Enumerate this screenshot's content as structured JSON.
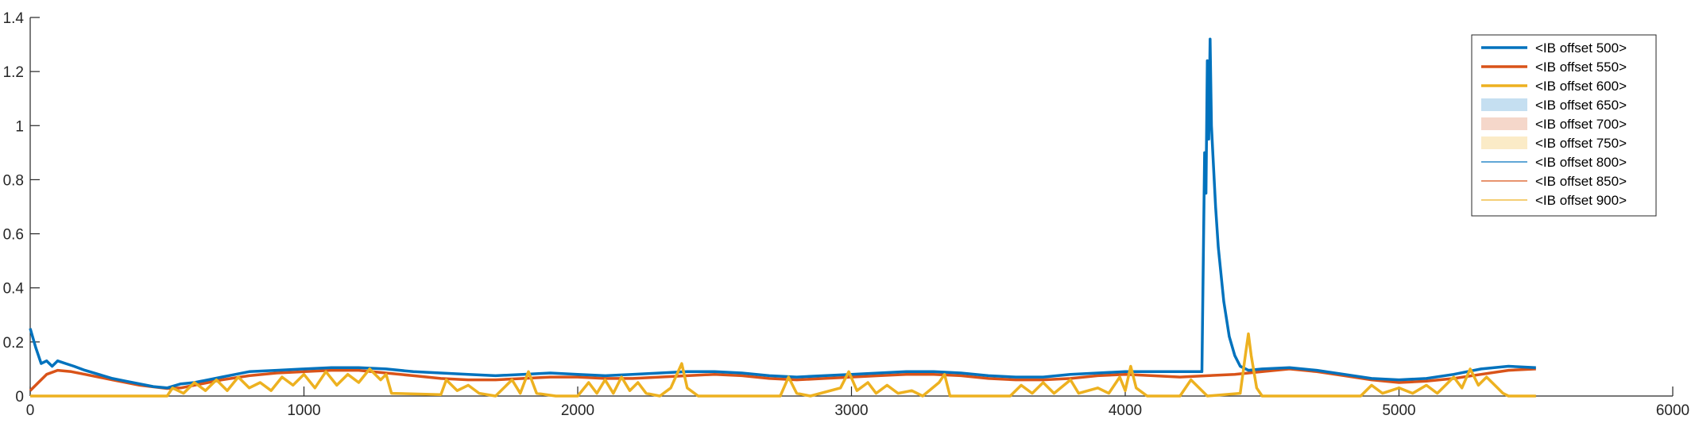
{
  "chart_data": {
    "type": "line",
    "title": "",
    "xlabel": "",
    "ylabel": "",
    "xlim": [
      0,
      6000
    ],
    "ylim": [
      0,
      1.4
    ],
    "xticks": [
      "0",
      "1000",
      "2000",
      "3000",
      "4000",
      "5000",
      "6000"
    ],
    "yticks": [
      "0",
      "0.2",
      "0.4",
      "0.6",
      "0.8",
      "1",
      "1.2",
      "1.4"
    ],
    "grid": false,
    "legend_position": "top-right",
    "series": [
      {
        "name": "<IB offset 500>",
        "style": "thick-line",
        "color": "#0072BD",
        "points": [
          [
            0,
            0.25
          ],
          [
            20,
            0.18
          ],
          [
            40,
            0.12
          ],
          [
            60,
            0.13
          ],
          [
            80,
            0.11
          ],
          [
            100,
            0.13
          ],
          [
            130,
            0.12
          ],
          [
            160,
            0.11
          ],
          [
            200,
            0.095
          ],
          [
            250,
            0.08
          ],
          [
            300,
            0.065
          ],
          [
            350,
            0.055
          ],
          [
            400,
            0.045
          ],
          [
            450,
            0.035
          ],
          [
            500,
            0.03
          ],
          [
            550,
            0.045
          ],
          [
            600,
            0.05
          ],
          [
            650,
            0.06
          ],
          [
            700,
            0.07
          ],
          [
            750,
            0.08
          ],
          [
            800,
            0.09
          ],
          [
            900,
            0.095
          ],
          [
            1000,
            0.1
          ],
          [
            1100,
            0.105
          ],
          [
            1200,
            0.105
          ],
          [
            1300,
            0.1
          ],
          [
            1400,
            0.09
          ],
          [
            1500,
            0.085
          ],
          [
            1600,
            0.08
          ],
          [
            1700,
            0.075
          ],
          [
            1800,
            0.08
          ],
          [
            1900,
            0.085
          ],
          [
            2000,
            0.08
          ],
          [
            2100,
            0.075
          ],
          [
            2200,
            0.08
          ],
          [
            2300,
            0.085
          ],
          [
            2400,
            0.09
          ],
          [
            2500,
            0.09
          ],
          [
            2600,
            0.085
          ],
          [
            2700,
            0.075
          ],
          [
            2800,
            0.07
          ],
          [
            2900,
            0.075
          ],
          [
            3000,
            0.08
          ],
          [
            3100,
            0.085
          ],
          [
            3200,
            0.09
          ],
          [
            3300,
            0.09
          ],
          [
            3400,
            0.085
          ],
          [
            3500,
            0.075
          ],
          [
            3600,
            0.07
          ],
          [
            3700,
            0.07
          ],
          [
            3800,
            0.08
          ],
          [
            3900,
            0.085
          ],
          [
            4000,
            0.09
          ],
          [
            4100,
            0.09
          ],
          [
            4200,
            0.09
          ],
          [
            4280,
            0.09
          ],
          [
            4290,
            0.9
          ],
          [
            4295,
            0.75
          ],
          [
            4300,
            1.24
          ],
          [
            4305,
            0.95
          ],
          [
            4310,
            1.32
          ],
          [
            4315,
            1.0
          ],
          [
            4320,
            0.9
          ],
          [
            4330,
            0.7
          ],
          [
            4340,
            0.55
          ],
          [
            4360,
            0.35
          ],
          [
            4380,
            0.22
          ],
          [
            4400,
            0.15
          ],
          [
            4420,
            0.11
          ],
          [
            4450,
            0.095
          ],
          [
            4500,
            0.1
          ],
          [
            4600,
            0.105
          ],
          [
            4700,
            0.095
          ],
          [
            4800,
            0.08
          ],
          [
            4900,
            0.065
          ],
          [
            5000,
            0.06
          ],
          [
            5100,
            0.065
          ],
          [
            5200,
            0.08
          ],
          [
            5300,
            0.1
          ],
          [
            5400,
            0.11
          ],
          [
            5500,
            0.105
          ]
        ]
      },
      {
        "name": "<IB offset 550>",
        "style": "thick-line",
        "color": "#D95319",
        "points": [
          [
            0,
            0.02
          ],
          [
            30,
            0.05
          ],
          [
            60,
            0.08
          ],
          [
            100,
            0.095
          ],
          [
            150,
            0.09
          ],
          [
            200,
            0.08
          ],
          [
            300,
            0.06
          ],
          [
            400,
            0.04
          ],
          [
            500,
            0.028
          ],
          [
            550,
            0.03
          ],
          [
            600,
            0.04
          ],
          [
            700,
            0.06
          ],
          [
            800,
            0.075
          ],
          [
            900,
            0.085
          ],
          [
            1000,
            0.09
          ],
          [
            1100,
            0.095
          ],
          [
            1200,
            0.095
          ],
          [
            1300,
            0.085
          ],
          [
            1400,
            0.075
          ],
          [
            1500,
            0.065
          ],
          [
            1600,
            0.06
          ],
          [
            1700,
            0.06
          ],
          [
            1800,
            0.065
          ],
          [
            1900,
            0.07
          ],
          [
            2000,
            0.07
          ],
          [
            2100,
            0.065
          ],
          [
            2200,
            0.065
          ],
          [
            2300,
            0.07
          ],
          [
            2400,
            0.075
          ],
          [
            2500,
            0.08
          ],
          [
            2600,
            0.075
          ],
          [
            2700,
            0.065
          ],
          [
            2800,
            0.06
          ],
          [
            2900,
            0.065
          ],
          [
            3000,
            0.07
          ],
          [
            3100,
            0.075
          ],
          [
            3200,
            0.08
          ],
          [
            3300,
            0.08
          ],
          [
            3400,
            0.075
          ],
          [
            3500,
            0.065
          ],
          [
            3600,
            0.06
          ],
          [
            3700,
            0.06
          ],
          [
            3800,
            0.065
          ],
          [
            3900,
            0.075
          ],
          [
            4000,
            0.08
          ],
          [
            4100,
            0.075
          ],
          [
            4200,
            0.07
          ],
          [
            4300,
            0.075
          ],
          [
            4400,
            0.08
          ],
          [
            4500,
            0.09
          ],
          [
            4600,
            0.1
          ],
          [
            4700,
            0.09
          ],
          [
            4800,
            0.075
          ],
          [
            4900,
            0.06
          ],
          [
            5000,
            0.05
          ],
          [
            5100,
            0.055
          ],
          [
            5200,
            0.065
          ],
          [
            5300,
            0.08
          ],
          [
            5400,
            0.095
          ],
          [
            5500,
            0.1
          ]
        ]
      },
      {
        "name": "<IB offset 600>",
        "style": "thick-line",
        "color": "#EDB120",
        "points": [
          [
            0,
            0.0
          ],
          [
            500,
            0.0
          ],
          [
            520,
            0.03
          ],
          [
            560,
            0.01
          ],
          [
            600,
            0.05
          ],
          [
            640,
            0.02
          ],
          [
            680,
            0.06
          ],
          [
            720,
            0.02
          ],
          [
            760,
            0.07
          ],
          [
            800,
            0.03
          ],
          [
            840,
            0.05
          ],
          [
            880,
            0.02
          ],
          [
            920,
            0.07
          ],
          [
            960,
            0.04
          ],
          [
            1000,
            0.08
          ],
          [
            1040,
            0.03
          ],
          [
            1080,
            0.09
          ],
          [
            1120,
            0.04
          ],
          [
            1160,
            0.08
          ],
          [
            1200,
            0.05
          ],
          [
            1240,
            0.1
          ],
          [
            1280,
            0.06
          ],
          [
            1300,
            0.08
          ],
          [
            1320,
            0.01
          ],
          [
            1500,
            0.005
          ],
          [
            1520,
            0.06
          ],
          [
            1560,
            0.02
          ],
          [
            1600,
            0.04
          ],
          [
            1640,
            0.01
          ],
          [
            1700,
            0.0
          ],
          [
            1760,
            0.06
          ],
          [
            1790,
            0.01
          ],
          [
            1820,
            0.09
          ],
          [
            1850,
            0.01
          ],
          [
            1920,
            0.0
          ],
          [
            2000,
            0.0
          ],
          [
            2040,
            0.05
          ],
          [
            2070,
            0.01
          ],
          [
            2100,
            0.06
          ],
          [
            2130,
            0.01
          ],
          [
            2160,
            0.07
          ],
          [
            2190,
            0.02
          ],
          [
            2220,
            0.05
          ],
          [
            2250,
            0.01
          ],
          [
            2300,
            0.0
          ],
          [
            2340,
            0.03
          ],
          [
            2380,
            0.12
          ],
          [
            2400,
            0.03
          ],
          [
            2440,
            0.0
          ],
          [
            2740,
            0.0
          ],
          [
            2770,
            0.07
          ],
          [
            2800,
            0.01
          ],
          [
            2850,
            0.0
          ],
          [
            2960,
            0.03
          ],
          [
            2990,
            0.09
          ],
          [
            3020,
            0.02
          ],
          [
            3060,
            0.05
          ],
          [
            3090,
            0.01
          ],
          [
            3130,
            0.04
          ],
          [
            3170,
            0.01
          ],
          [
            3220,
            0.02
          ],
          [
            3260,
            0.0
          ],
          [
            3320,
            0.05
          ],
          [
            3340,
            0.08
          ],
          [
            3360,
            0.0
          ],
          [
            3580,
            0.0
          ],
          [
            3620,
            0.04
          ],
          [
            3660,
            0.01
          ],
          [
            3700,
            0.05
          ],
          [
            3740,
            0.01
          ],
          [
            3800,
            0.06
          ],
          [
            3830,
            0.01
          ],
          [
            3900,
            0.03
          ],
          [
            3940,
            0.01
          ],
          [
            3980,
            0.07
          ],
          [
            4000,
            0.02
          ],
          [
            4020,
            0.11
          ],
          [
            4040,
            0.03
          ],
          [
            4080,
            0.0
          ],
          [
            4200,
            0.0
          ],
          [
            4240,
            0.06
          ],
          [
            4280,
            0.02
          ],
          [
            4300,
            0.0
          ],
          [
            4420,
            0.01
          ],
          [
            4440,
            0.16
          ],
          [
            4450,
            0.23
          ],
          [
            4460,
            0.15
          ],
          [
            4480,
            0.03
          ],
          [
            4500,
            0.0
          ],
          [
            4860,
            0.0
          ],
          [
            4900,
            0.04
          ],
          [
            4940,
            0.01
          ],
          [
            5000,
            0.03
          ],
          [
            5050,
            0.01
          ],
          [
            5100,
            0.04
          ],
          [
            5140,
            0.01
          ],
          [
            5200,
            0.07
          ],
          [
            5230,
            0.03
          ],
          [
            5260,
            0.1
          ],
          [
            5290,
            0.04
          ],
          [
            5320,
            0.07
          ],
          [
            5360,
            0.03
          ],
          [
            5380,
            0.01
          ],
          [
            5400,
            0.0
          ],
          [
            5500,
            0.0
          ]
        ]
      },
      {
        "name": "<IB offset 650>",
        "style": "shaded-band",
        "color": "#c5dff1"
      },
      {
        "name": "<IB offset 700>",
        "style": "shaded-band",
        "color": "#f5d7ca"
      },
      {
        "name": "<IB offset 750>",
        "style": "shaded-band",
        "color": "#fbebc7"
      },
      {
        "name": "<IB offset 800>",
        "style": "thin-line",
        "color": "#0072BD"
      },
      {
        "name": "<IB offset 850>",
        "style": "thin-line",
        "color": "#D95319"
      },
      {
        "name": "<IB offset 900>",
        "style": "thin-line",
        "color": "#EDB120"
      }
    ]
  }
}
